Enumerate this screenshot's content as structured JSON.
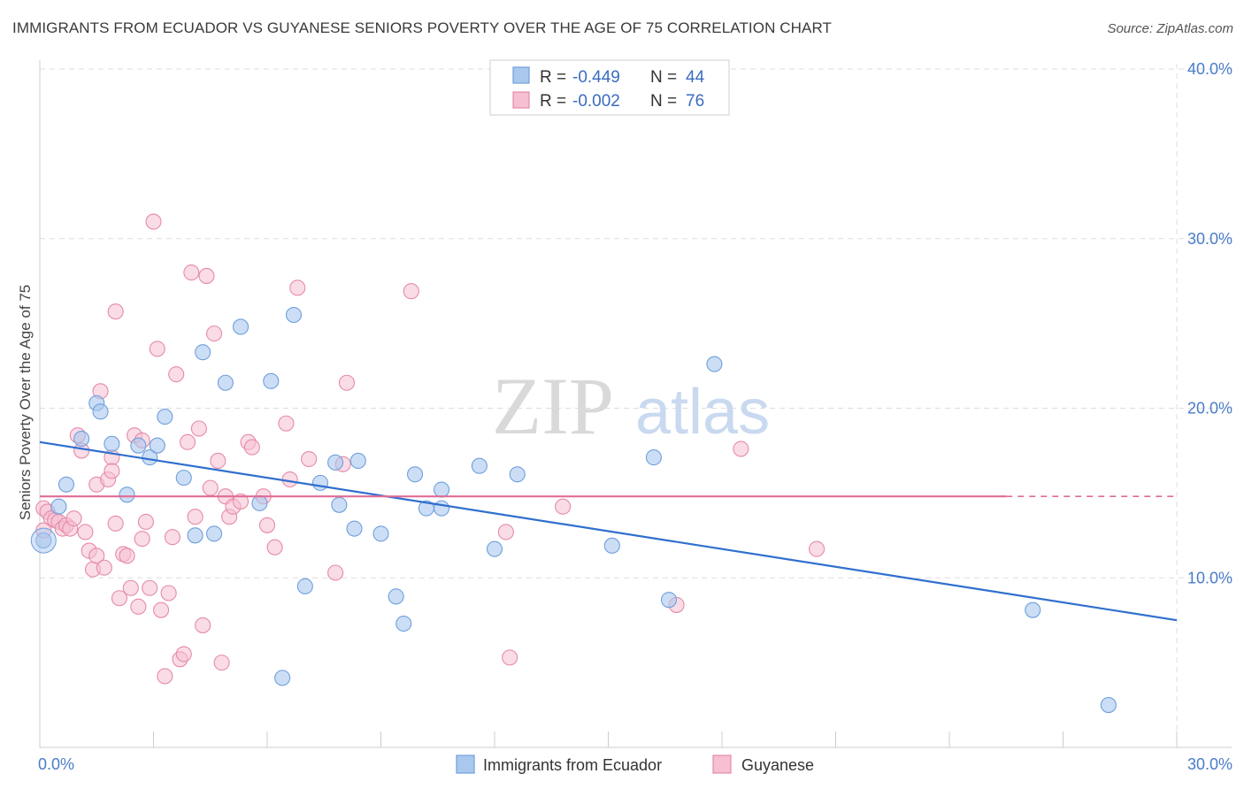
{
  "header": {
    "title": "IMMIGRANTS FROM ECUADOR VS GUYANESE SENIORS POVERTY OVER THE AGE OF 75 CORRELATION CHART",
    "source": "Source: ZipAtlas.com"
  },
  "watermark": {
    "zip": "ZIP",
    "atlas": "atlas"
  },
  "colors": {
    "blue_fill": "#aac8ee",
    "blue_stroke": "#6f9fdc",
    "blue_line": "#2f6fce",
    "pink_fill": "#f6bfd2",
    "pink_stroke": "#e58aab",
    "pink_line": "#e06b96",
    "tick_text": "#4a7cc9",
    "grid": "#dddddd"
  },
  "stats_legend": [
    {
      "r_label": "R = ",
      "r_value": "-0.449",
      "n_label": "N = ",
      "n_value": "44",
      "series": "blue"
    },
    {
      "r_label": "R = ",
      "r_value": "-0.002",
      "n_label": "N = ",
      "n_value": "76",
      "series": "pink"
    }
  ],
  "chart_data": {
    "type": "scatter",
    "title": "IMMIGRANTS FROM ECUADOR VS GUYANESE SENIORS POVERTY OVER THE AGE OF 75 CORRELATION CHART",
    "xlabel": "",
    "ylabel": "Seniors Poverty Over the Age of 75",
    "xlim": [
      0,
      30
    ],
    "ylim": [
      0,
      40
    ],
    "x_tick_labels": [
      {
        "value": 0,
        "label": "0.0%"
      },
      {
        "value": 30,
        "label": "30.0%"
      }
    ],
    "y_tick_labels": [
      {
        "value": 10,
        "label": "10.0%"
      },
      {
        "value": 20,
        "label": "20.0%"
      },
      {
        "value": 30,
        "label": "30.0%"
      },
      {
        "value": 40,
        "label": "40.0%"
      }
    ],
    "grid": true,
    "legend_position": "bottom",
    "series": [
      {
        "name": "Immigrants from Ecuador",
        "color": "blue",
        "trend": {
          "x": [
            0,
            30
          ],
          "y": [
            18.0,
            7.5
          ]
        },
        "points": [
          [
            0.1,
            12.2
          ],
          [
            0.5,
            14.2
          ],
          [
            0.7,
            15.5
          ],
          [
            1.1,
            18.2
          ],
          [
            1.5,
            20.3
          ],
          [
            1.6,
            19.8
          ],
          [
            1.9,
            17.9
          ],
          [
            2.3,
            14.9
          ],
          [
            2.6,
            17.8
          ],
          [
            2.9,
            17.1
          ],
          [
            3.3,
            19.5
          ],
          [
            3.1,
            17.8
          ],
          [
            3.8,
            15.9
          ],
          [
            4.1,
            12.5
          ],
          [
            4.3,
            23.3
          ],
          [
            4.6,
            12.6
          ],
          [
            4.9,
            21.5
          ],
          [
            5.3,
            24.8
          ],
          [
            5.8,
            14.4
          ],
          [
            6.1,
            21.6
          ],
          [
            6.4,
            4.1
          ],
          [
            6.7,
            25.5
          ],
          [
            7.0,
            9.5
          ],
          [
            7.4,
            15.6
          ],
          [
            7.9,
            14.3
          ],
          [
            7.8,
            16.8
          ],
          [
            8.3,
            12.9
          ],
          [
            8.4,
            16.9
          ],
          [
            9.0,
            12.6
          ],
          [
            9.4,
            8.9
          ],
          [
            9.6,
            7.3
          ],
          [
            9.9,
            16.1
          ],
          [
            10.2,
            14.1
          ],
          [
            10.6,
            15.2
          ],
          [
            10.6,
            14.1
          ],
          [
            11.6,
            16.6
          ],
          [
            12.0,
            11.7
          ],
          [
            12.6,
            16.1
          ],
          [
            15.1,
            11.9
          ],
          [
            16.2,
            17.1
          ],
          [
            16.6,
            8.7
          ],
          [
            17.8,
            22.6
          ],
          [
            26.2,
            8.1
          ],
          [
            28.2,
            2.5
          ]
        ]
      },
      {
        "name": "Guyanese",
        "color": "pink",
        "trend": {
          "x": [
            0,
            25.5
          ],
          "y": [
            14.8,
            14.8
          ],
          "dashed_to": 30
        },
        "points": [
          [
            0.1,
            14.1
          ],
          [
            0.2,
            13.9
          ],
          [
            0.3,
            13.5
          ],
          [
            0.4,
            13.4
          ],
          [
            0.5,
            13.3
          ],
          [
            0.6,
            12.9
          ],
          [
            0.7,
            13.1
          ],
          [
            0.8,
            12.9
          ],
          [
            0.9,
            13.5
          ],
          [
            1.0,
            18.4
          ],
          [
            1.1,
            17.5
          ],
          [
            1.2,
            12.7
          ],
          [
            1.3,
            11.6
          ],
          [
            1.4,
            10.5
          ],
          [
            1.5,
            11.3
          ],
          [
            1.5,
            15.5
          ],
          [
            1.6,
            21.0
          ],
          [
            1.7,
            10.6
          ],
          [
            1.8,
            15.8
          ],
          [
            1.9,
            17.1
          ],
          [
            1.9,
            16.3
          ],
          [
            2.0,
            13.2
          ],
          [
            2.0,
            25.7
          ],
          [
            2.1,
            8.8
          ],
          [
            2.2,
            11.4
          ],
          [
            2.3,
            11.3
          ],
          [
            2.4,
            9.4
          ],
          [
            2.5,
            18.4
          ],
          [
            2.6,
            8.3
          ],
          [
            2.7,
            12.3
          ],
          [
            2.7,
            18.1
          ],
          [
            2.8,
            13.3
          ],
          [
            2.9,
            9.4
          ],
          [
            3.0,
            31.0
          ],
          [
            3.1,
            23.5
          ],
          [
            3.2,
            8.1
          ],
          [
            3.3,
            4.2
          ],
          [
            3.4,
            9.1
          ],
          [
            3.5,
            12.4
          ],
          [
            3.6,
            22.0
          ],
          [
            3.7,
            5.2
          ],
          [
            3.8,
            5.5
          ],
          [
            3.9,
            18.0
          ],
          [
            4.0,
            28.0
          ],
          [
            4.1,
            13.6
          ],
          [
            4.2,
            18.8
          ],
          [
            4.3,
            7.2
          ],
          [
            4.4,
            27.8
          ],
          [
            4.5,
            15.3
          ],
          [
            4.6,
            24.4
          ],
          [
            4.7,
            16.9
          ],
          [
            4.8,
            5.0
          ],
          [
            4.9,
            14.8
          ],
          [
            5.0,
            13.6
          ],
          [
            5.1,
            14.2
          ],
          [
            5.3,
            14.5
          ],
          [
            5.5,
            18.0
          ],
          [
            5.6,
            17.7
          ],
          [
            5.9,
            14.8
          ],
          [
            6.0,
            13.1
          ],
          [
            6.2,
            11.8
          ],
          [
            6.5,
            19.1
          ],
          [
            6.6,
            15.8
          ],
          [
            6.8,
            27.1
          ],
          [
            7.1,
            17.0
          ],
          [
            7.8,
            10.3
          ],
          [
            8.0,
            16.7
          ],
          [
            8.1,
            21.5
          ],
          [
            9.8,
            26.9
          ],
          [
            12.3,
            12.7
          ],
          [
            12.4,
            5.3
          ],
          [
            13.8,
            14.2
          ],
          [
            16.8,
            8.4
          ],
          [
            18.5,
            17.6
          ],
          [
            20.5,
            11.7
          ],
          [
            0.1,
            12.8
          ]
        ]
      }
    ]
  },
  "bottom_legend": [
    {
      "label": "Immigrants from Ecuador",
      "series": "blue"
    },
    {
      "label": "Guyanese",
      "series": "pink"
    }
  ]
}
